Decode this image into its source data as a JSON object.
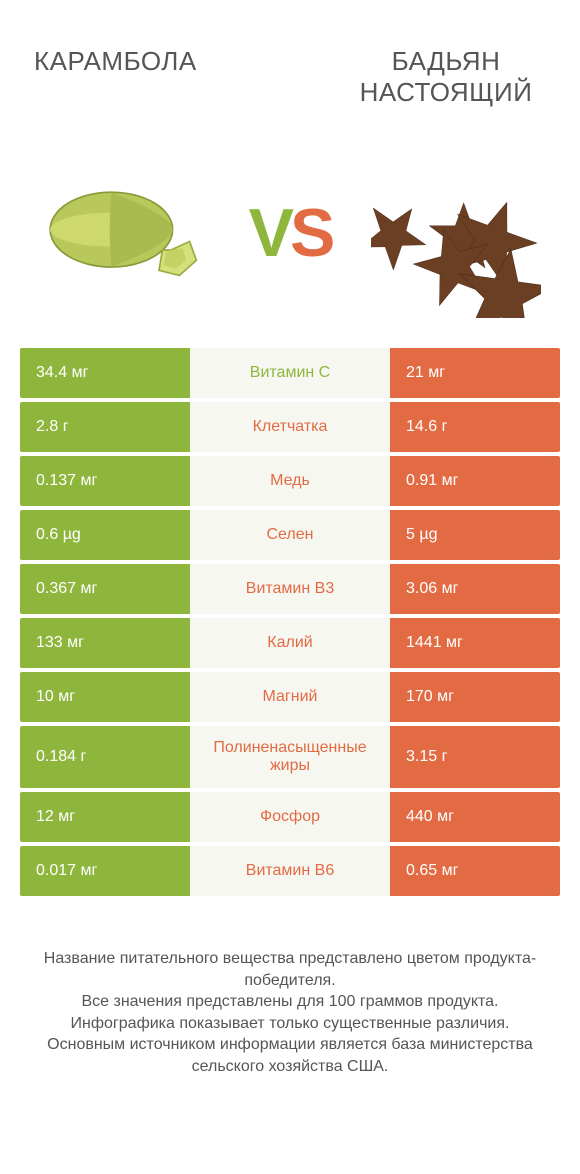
{
  "header": {
    "left_title": "КАРАМБОЛА",
    "right_title": "БАДЬЯН НАСТОЯЩИЙ",
    "vs_v": "V",
    "vs_s": "S"
  },
  "colors": {
    "left": "#8fb63c",
    "right": "#e36b43",
    "mid_bg": "#f7f7f2",
    "text": "#555555",
    "background": "#ffffff"
  },
  "comparison": {
    "type": "infographic-comparison-table",
    "left_label": "Карамбола",
    "right_label": "Бадьян настоящий",
    "rows": [
      {
        "nutrient": "Витамин C",
        "left": "34.4 мг",
        "right": "21 мг",
        "winner": "left"
      },
      {
        "nutrient": "Клетчатка",
        "left": "2.8 г",
        "right": "14.6 г",
        "winner": "right"
      },
      {
        "nutrient": "Медь",
        "left": "0.137 мг",
        "right": "0.91 мг",
        "winner": "right"
      },
      {
        "nutrient": "Селен",
        "left": "0.6 µg",
        "right": "5 µg",
        "winner": "right"
      },
      {
        "nutrient": "Витамин B3",
        "left": "0.367 мг",
        "right": "3.06 мг",
        "winner": "right"
      },
      {
        "nutrient": "Калий",
        "left": "133 мг",
        "right": "1441 мг",
        "winner": "right"
      },
      {
        "nutrient": "Магний",
        "left": "10 мг",
        "right": "170 мг",
        "winner": "right"
      },
      {
        "nutrient": "Полиненасыщенные жиры",
        "left": "0.184 г",
        "right": "3.15 г",
        "winner": "right",
        "tall": true
      },
      {
        "nutrient": "Фосфор",
        "left": "12 мг",
        "right": "440 мг",
        "winner": "right"
      },
      {
        "nutrient": "Витамин B6",
        "left": "0.017 мг",
        "right": "0.65 мг",
        "winner": "right"
      }
    ]
  },
  "footnote": {
    "line1": "Название питательного вещества представлено цветом продукта-победителя.",
    "line2": "Все значения представлены для 100 граммов продукта.",
    "line3": "Инфографика показывает только существенные различия.",
    "line4": "Основным источником информации является база министерства сельского хозяйства США."
  }
}
